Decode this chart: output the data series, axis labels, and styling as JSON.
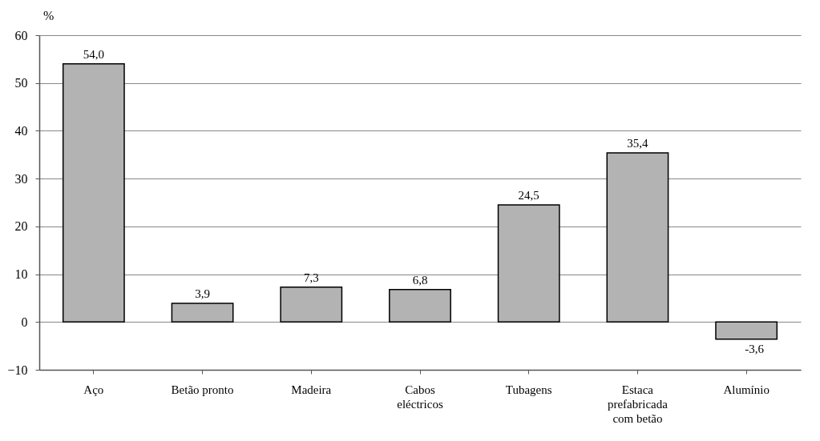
{
  "chart_data": {
    "type": "bar",
    "ylabel": "%",
    "categories": [
      "Aço",
      "Betão pronto",
      "Madeira",
      "Cabos eléctricos",
      "Tubagens",
      "Estaca prefabricada com betão",
      "Alumínio"
    ],
    "values": [
      54.0,
      3.9,
      7.3,
      6.8,
      24.5,
      35.4,
      -3.6
    ],
    "value_labels": [
      "54,0",
      "3,9",
      "7,3",
      "6,8",
      "24,5",
      "35,4",
      "-3,6"
    ],
    "color": "#b3b3b3",
    "ylim": [
      -10,
      60
    ],
    "yticks": [
      -10,
      0,
      10,
      20,
      30,
      40,
      50,
      60
    ],
    "grid": "y"
  }
}
